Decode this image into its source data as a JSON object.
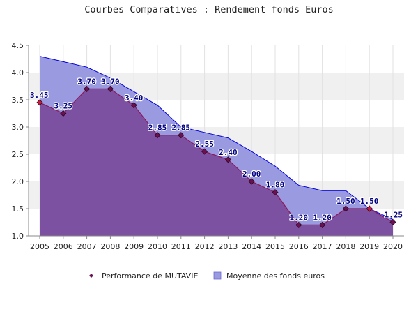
{
  "chart_data": {
    "type": "area",
    "title": "Courbes Comparatives : Rendement fonds Euros",
    "xlabel": "",
    "ylabel": "",
    "x": [
      2005,
      2006,
      2007,
      2008,
      2009,
      2010,
      2011,
      2012,
      2013,
      2014,
      2015,
      2016,
      2017,
      2018,
      2019,
      2020
    ],
    "ylim": [
      1.0,
      4.5
    ],
    "yticks": [
      "1.0",
      "1.5",
      "2.0",
      "2.5",
      "3.0",
      "3.5",
      "4.0",
      "4.5"
    ],
    "grid": "horizontal bands",
    "legend_position": "bottom",
    "series": [
      {
        "name": "Performance de MUTAVIE",
        "kind": "line-with-markers",
        "color": "#8b1a5a",
        "values": [
          3.45,
          3.25,
          3.7,
          3.7,
          3.4,
          2.85,
          2.85,
          2.55,
          2.4,
          2.0,
          1.8,
          1.2,
          1.2,
          1.5,
          1.5,
          1.25
        ],
        "labels": [
          "3.45",
          "3.25",
          "3.70",
          "3.70",
          "3.40",
          "2.85",
          "2.85",
          "2.55",
          "2.40",
          "2.00",
          "1.80",
          "1.20",
          "1.20",
          "1.50",
          "1.50",
          "1.25"
        ]
      },
      {
        "name": "Moyenne des fonds euros",
        "kind": "area",
        "color": "#9a9ae0",
        "values": [
          4.3,
          4.2,
          4.1,
          3.9,
          3.65,
          3.4,
          3.0,
          2.9,
          2.8,
          2.55,
          2.28,
          1.93,
          1.83,
          1.83,
          1.5,
          1.3
        ]
      }
    ],
    "colors": {
      "area_fill": "#9a9ae0",
      "area_line": "#0000dd",
      "overlap_fill": "#7b4b9b",
      "mutavie_line": "#8b1a5a",
      "marker_fill": "#6b1050",
      "highlight_marker": "#cc1a3a",
      "data_label": "#000080",
      "band": "#f0f0f0",
      "axis": "#888888"
    }
  }
}
